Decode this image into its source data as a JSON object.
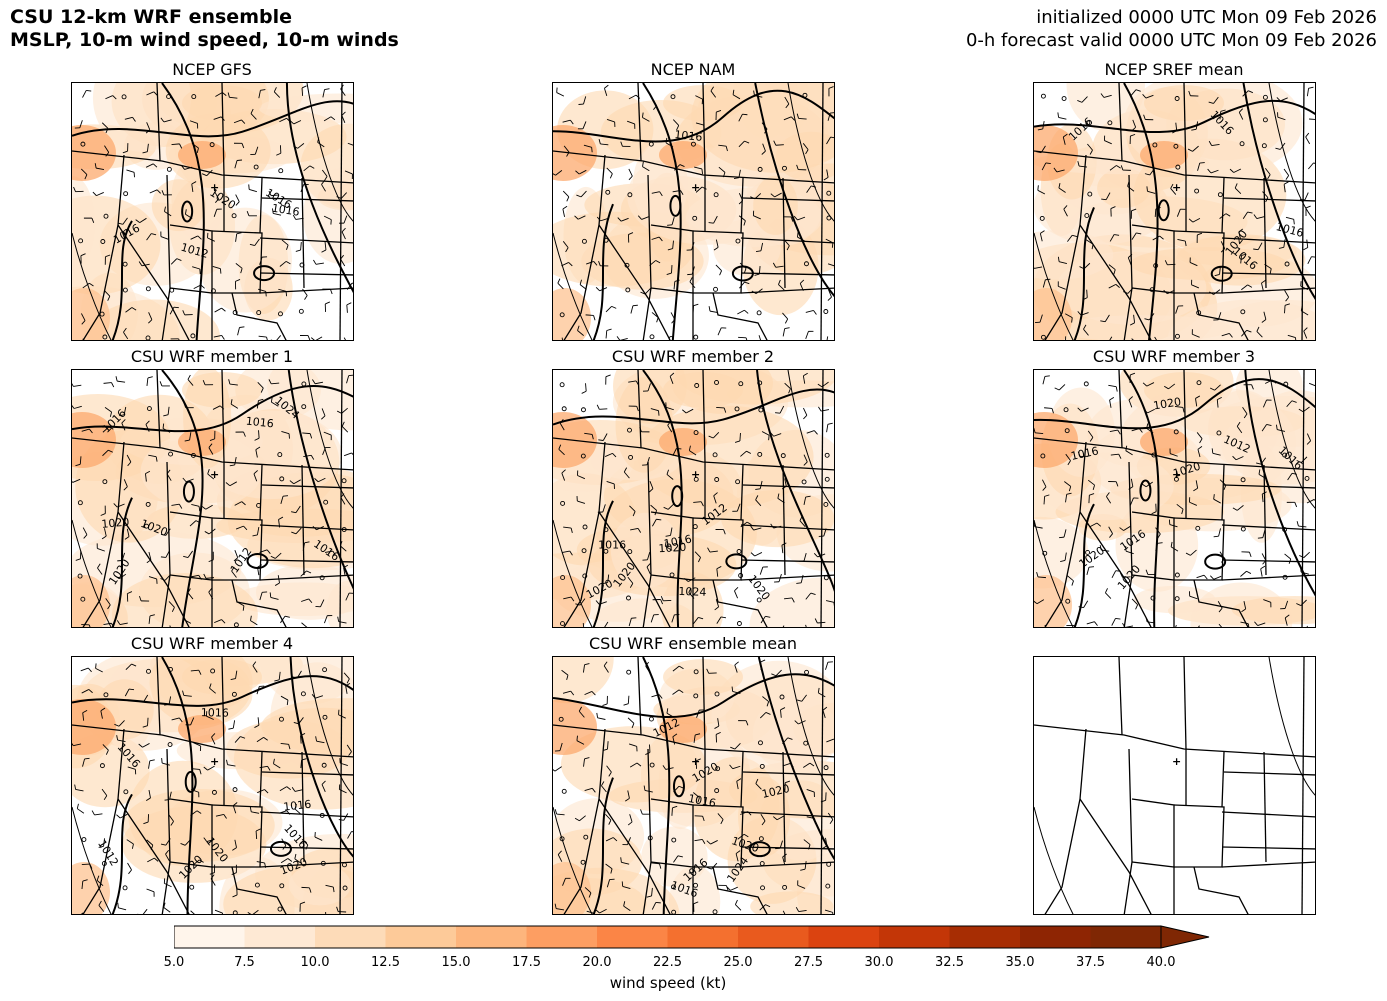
{
  "header": {
    "title_line1": "CSU 12-km WRF ensemble",
    "title_line2": "MSLP, 10-m wind speed, 10-m winds",
    "init_line": "initialized 0000 UTC Mon 09 Feb 2026",
    "valid_line": "0-h forecast valid 0000 UTC Mon 09 Feb 2026"
  },
  "panels": [
    {
      "title": "NCEP GFS",
      "isobars": [
        "1016",
        "1016",
        "1012",
        "1016",
        "1020"
      ]
    },
    {
      "title": "NCEP NAM",
      "isobars": [
        "1016"
      ]
    },
    {
      "title": "NCEP SREF mean",
      "isobars": [
        "1016",
        "1016",
        "1020",
        "1016",
        "1016"
      ]
    },
    {
      "title": "CSU WRF member 1",
      "isobars": [
        "1016",
        "1012",
        "1016",
        "1024",
        "1016",
        "1020",
        "1020",
        "1020"
      ]
    },
    {
      "title": "CSU WRF member 2",
      "isobars": [
        "1016",
        "1012",
        "1016",
        "1024",
        "1020",
        "1020",
        "1020",
        "1020"
      ]
    },
    {
      "title": "CSU WRF member 3",
      "isobars": [
        "1012",
        "1020",
        "1016",
        "1020",
        "1016",
        "1016",
        "1020",
        "1020"
      ]
    },
    {
      "title": "CSU WRF member 4",
      "isobars": [
        "1012",
        "1016",
        "1020",
        "1016",
        "1020",
        "1016",
        "1020",
        "1016"
      ]
    },
    {
      "title": "CSU WRF ensemble mean",
      "isobars": [
        "1012",
        "1016",
        "1020",
        "1016",
        "1020",
        "1024",
        "1016",
        "1020"
      ]
    },
    {
      "title": "",
      "isobars": []
    }
  ],
  "colorbar": {
    "title": "wind speed (kt)",
    "ticks": [
      "5.0",
      "7.5",
      "10.0",
      "12.5",
      "15.0",
      "17.5",
      "20.0",
      "22.5",
      "25.0",
      "27.5",
      "30.0",
      "32.5",
      "35.0",
      "37.5",
      "40.0"
    ],
    "colors": [
      "#fff5eb",
      "#fee9d4",
      "#fddbb8",
      "#fdca99",
      "#fdb57d",
      "#fd9e62",
      "#fb8546",
      "#f4702f",
      "#e95a1e",
      "#db4310",
      "#c33607",
      "#a72d03",
      "#8e2503",
      "#7f2704"
    ]
  }
}
